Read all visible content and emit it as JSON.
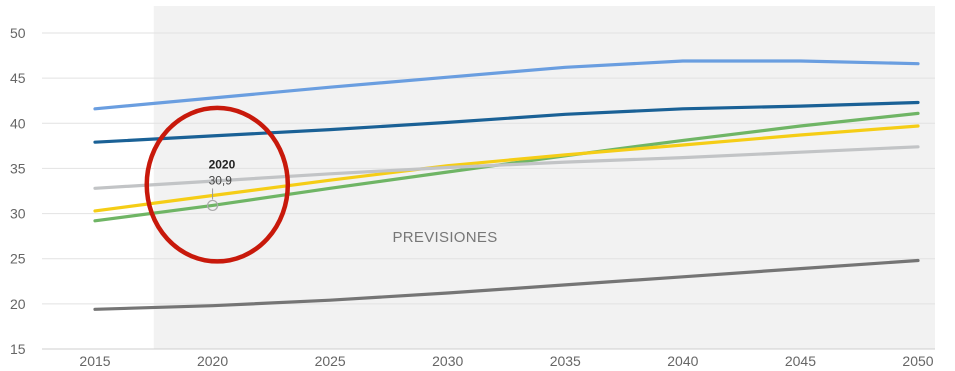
{
  "chart_data": {
    "type": "line",
    "title": "",
    "xlabel": "",
    "ylabel": "",
    "x": [
      2015,
      2020,
      2025,
      2030,
      2035,
      2040,
      2045,
      2050
    ],
    "xlim": [
      2015,
      2050
    ],
    "ylim": [
      15,
      50
    ],
    "x_ticks": [
      "2015",
      "2020",
      "2025",
      "2030",
      "2035",
      "2040",
      "2045",
      "2050"
    ],
    "y_ticks": [
      "15",
      "20",
      "25",
      "30",
      "35",
      "40",
      "45",
      "50"
    ],
    "grid": true,
    "legend": "none",
    "forecast_region": {
      "label": "PREVISIONES",
      "from": 2017.5,
      "to": 2050,
      "color": "#f2f2f2"
    },
    "series": [
      {
        "color": "#6a9ee0",
        "values": [
          41.6,
          42.8,
          44.0,
          45.1,
          46.2,
          46.9,
          46.9,
          46.6
        ]
      },
      {
        "color": "#1a6196",
        "values": [
          37.9,
          38.6,
          39.3,
          40.1,
          41.0,
          41.6,
          41.9,
          42.3
        ]
      },
      {
        "color": "#6fb565",
        "values": [
          29.2,
          30.9,
          32.8,
          34.6,
          36.4,
          38.1,
          39.7,
          41.1
        ]
      },
      {
        "color": "#f5cd16",
        "values": [
          30.3,
          32.0,
          33.7,
          35.3,
          36.5,
          37.6,
          38.7,
          39.7
        ]
      },
      {
        "color": "#c2c4c6",
        "values": [
          32.8,
          33.6,
          34.4,
          35.1,
          35.7,
          36.2,
          36.8,
          37.4
        ]
      },
      {
        "color": "#757575",
        "values": [
          19.4,
          19.8,
          20.4,
          21.2,
          22.1,
          23.0,
          23.9,
          24.8
        ]
      }
    ],
    "tooltip": {
      "year": "2020",
      "value": "30,9",
      "x": 2020,
      "y": 30.9,
      "color": "#6fb565"
    },
    "annotation": {
      "type": "ellipse",
      "color": "#c8190b",
      "center_x": 2020.2,
      "center_y": 33.2,
      "rx_years": 3.0,
      "ry_units": 8.5
    }
  }
}
